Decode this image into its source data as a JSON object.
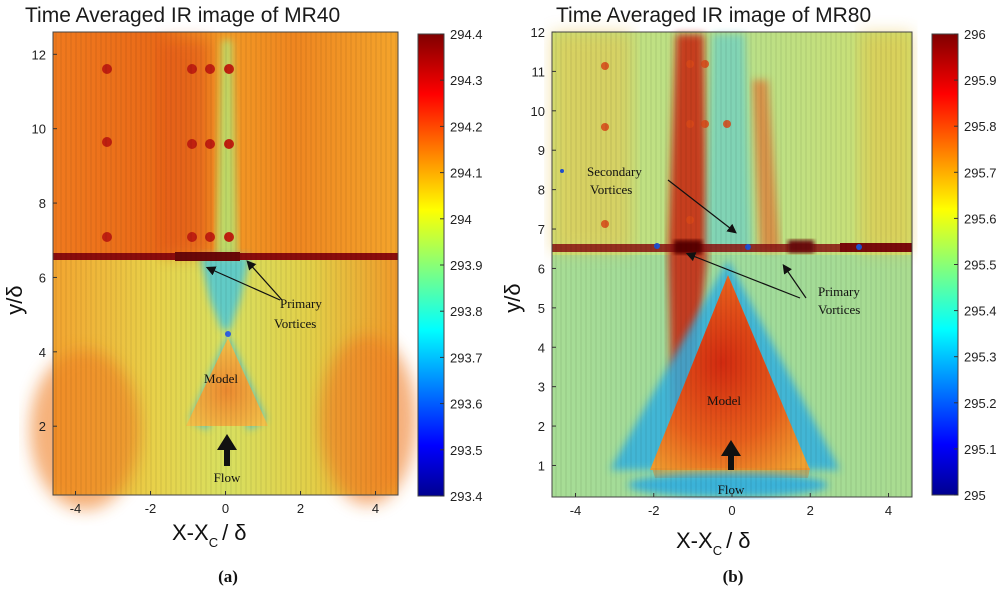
{
  "chart_data": [
    {
      "type": "heatmap",
      "panel_label": "(a)",
      "title": "Time Averaged IR image of MR40",
      "xlabel": "X-X",
      "xlabel_sub": "C",
      "xlabel_tail": "/ δ",
      "ylabel": "y/δ",
      "xlim": [
        -4.6,
        4.6
      ],
      "ylim": [
        0.15,
        12.6
      ],
      "xticks": [
        "-4",
        "-2",
        "0",
        "2",
        "4"
      ],
      "yticks": [
        "2",
        "4",
        "6",
        "8",
        "10",
        "12"
      ],
      "colorbar": {
        "min": 293.4,
        "max": 294.4,
        "ticks": [
          "294.4",
          "294.3",
          "294.2",
          "294.1",
          "294",
          "293.9",
          "293.8",
          "293.7",
          "293.6",
          "293.5",
          "293.4"
        ]
      },
      "annotations": {
        "model": "Model",
        "flow": "Flow",
        "primary_1": "Primary",
        "primary_2": "Vortices"
      }
    },
    {
      "type": "heatmap",
      "panel_label": "(b)",
      "title": "Time Averaged IR image of MR80",
      "xlabel": "X-X",
      "xlabel_sub": "C",
      "xlabel_tail": "/ δ",
      "ylabel": "y/δ",
      "xlim": [
        -4.6,
        4.6
      ],
      "ylim": [
        0.2,
        12.0
      ],
      "xticks": [
        "-4",
        "-2",
        "0",
        "2",
        "4"
      ],
      "yticks": [
        "1",
        "2",
        "3",
        "4",
        "5",
        "6",
        "7",
        "8",
        "9",
        "10",
        "11",
        "12"
      ],
      "colorbar": {
        "min": 295,
        "max": 296,
        "ticks": [
          "296",
          "295.9",
          "295.8",
          "295.7",
          "295.6",
          "295.5",
          "295.4",
          "295.3",
          "295.2",
          "295.1",
          "295"
        ]
      },
      "annotations": {
        "model": "Model",
        "flow": "Flow",
        "secondary_1": "Secondary",
        "secondary_2": "Vortices",
        "primary_1": "Primary",
        "primary_2": "Vortices"
      }
    }
  ],
  "colors": {
    "jet": [
      "#00008f",
      "#0000ff",
      "#00ffff",
      "#ffff00",
      "#ff0000",
      "#800000"
    ]
  }
}
